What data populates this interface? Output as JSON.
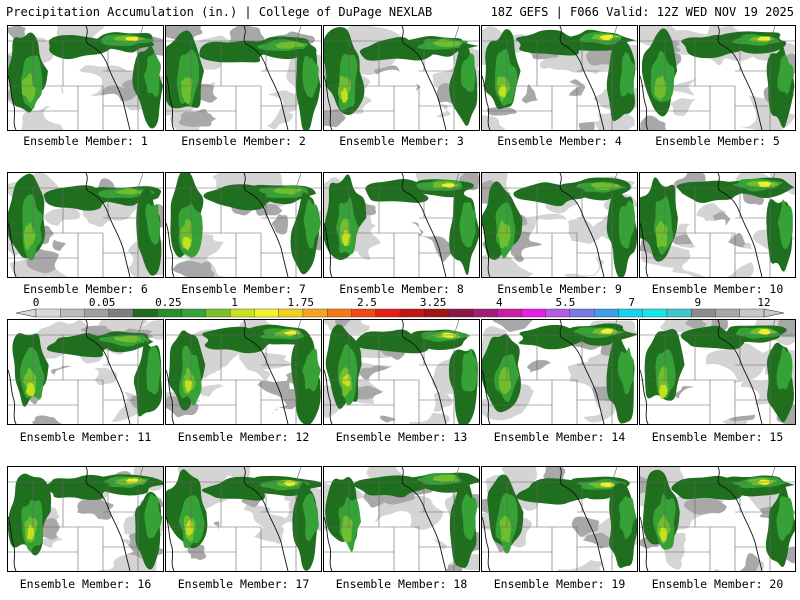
{
  "header": {
    "left": "Precipitation Accumulation (in.) | College of DuPage NEXLAB",
    "right": "18Z GEFS | F066 Valid: 12Z WED NOV 19 2025"
  },
  "member_label_prefix": "Ensemble Member: ",
  "members": [
    "1",
    "2",
    "3",
    "4",
    "5",
    "6",
    "7",
    "8",
    "9",
    "10",
    "11",
    "12",
    "13",
    "14",
    "15",
    "16",
    "17",
    "18",
    "19",
    "20"
  ],
  "legend": {
    "tick_labels": [
      "0",
      "0.05",
      "0.25",
      "1",
      "1.75",
      "2.5",
      "3.25",
      "4",
      "5.5",
      "7",
      "9",
      "12"
    ],
    "colors": [
      "#d9d9d9",
      "#bdbdbd",
      "#a0a0a0",
      "#7f7f7f",
      "#1e6b1e",
      "#2a8c2a",
      "#3aa23a",
      "#7ac12a",
      "#c8e21e",
      "#f5f52a",
      "#f0d21e",
      "#f5a41e",
      "#f57a14",
      "#ef4a14",
      "#e61e14",
      "#c31414",
      "#a01414",
      "#8c1446",
      "#a01e78",
      "#c81ea0",
      "#e61ee6",
      "#b45ae6",
      "#7a7ae6",
      "#3c9ee6",
      "#14d2f0",
      "#14e6e6",
      "#3cc8c8",
      "#8c8c8c",
      "#a8a8a8",
      "#c8c8c8"
    ]
  },
  "colors": {
    "light_gray": "#d4d4d4",
    "mid_gray": "#a8a8a8",
    "dark_green": "#1f6f1f",
    "green": "#36a136",
    "light_green": "#6fbe2e",
    "yellow_green": "#c5e11e",
    "yellow": "#f2f02a"
  }
}
